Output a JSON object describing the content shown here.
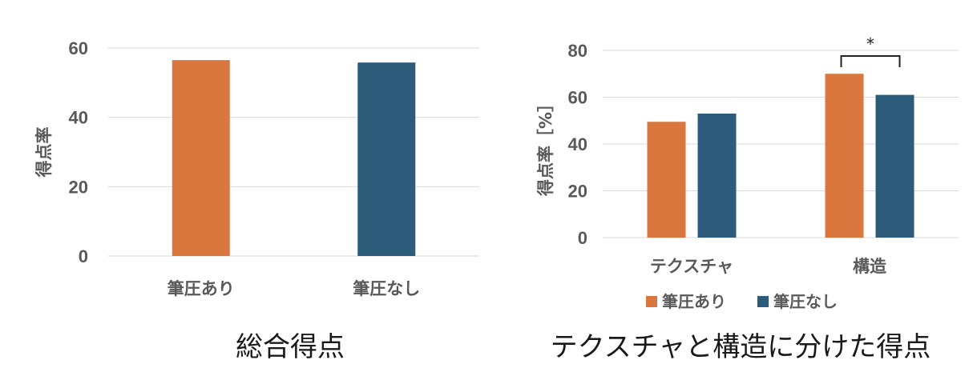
{
  "chart_data": [
    {
      "type": "bar",
      "title": "総合得点",
      "ylabel": "得点率",
      "ylim": [
        0,
        60
      ],
      "yticks": [
        0,
        20,
        40,
        60
      ],
      "grid": true,
      "categories": [
        "筆圧あり",
        "筆圧なし"
      ],
      "values": [
        56.5,
        55.8
      ],
      "colors": [
        "#D9773E",
        "#2C5C7A"
      ]
    },
    {
      "type": "bar",
      "title": "テクスチャと構造に分けた得点",
      "ylabel": "得点率［%］",
      "ylim": [
        0,
        80
      ],
      "yticks": [
        0,
        20,
        40,
        60,
        80
      ],
      "grid": true,
      "legend_position": "bottom",
      "categories": [
        "テクスチャ",
        "構造"
      ],
      "series": [
        {
          "name": "筆圧あり",
          "values": [
            49.5,
            70
          ],
          "color": "#D9773E"
        },
        {
          "name": "筆圧なし",
          "values": [
            53,
            61
          ],
          "color": "#2C5C7A"
        }
      ],
      "annotations": [
        {
          "category": "構造",
          "text": "*"
        }
      ]
    }
  ]
}
